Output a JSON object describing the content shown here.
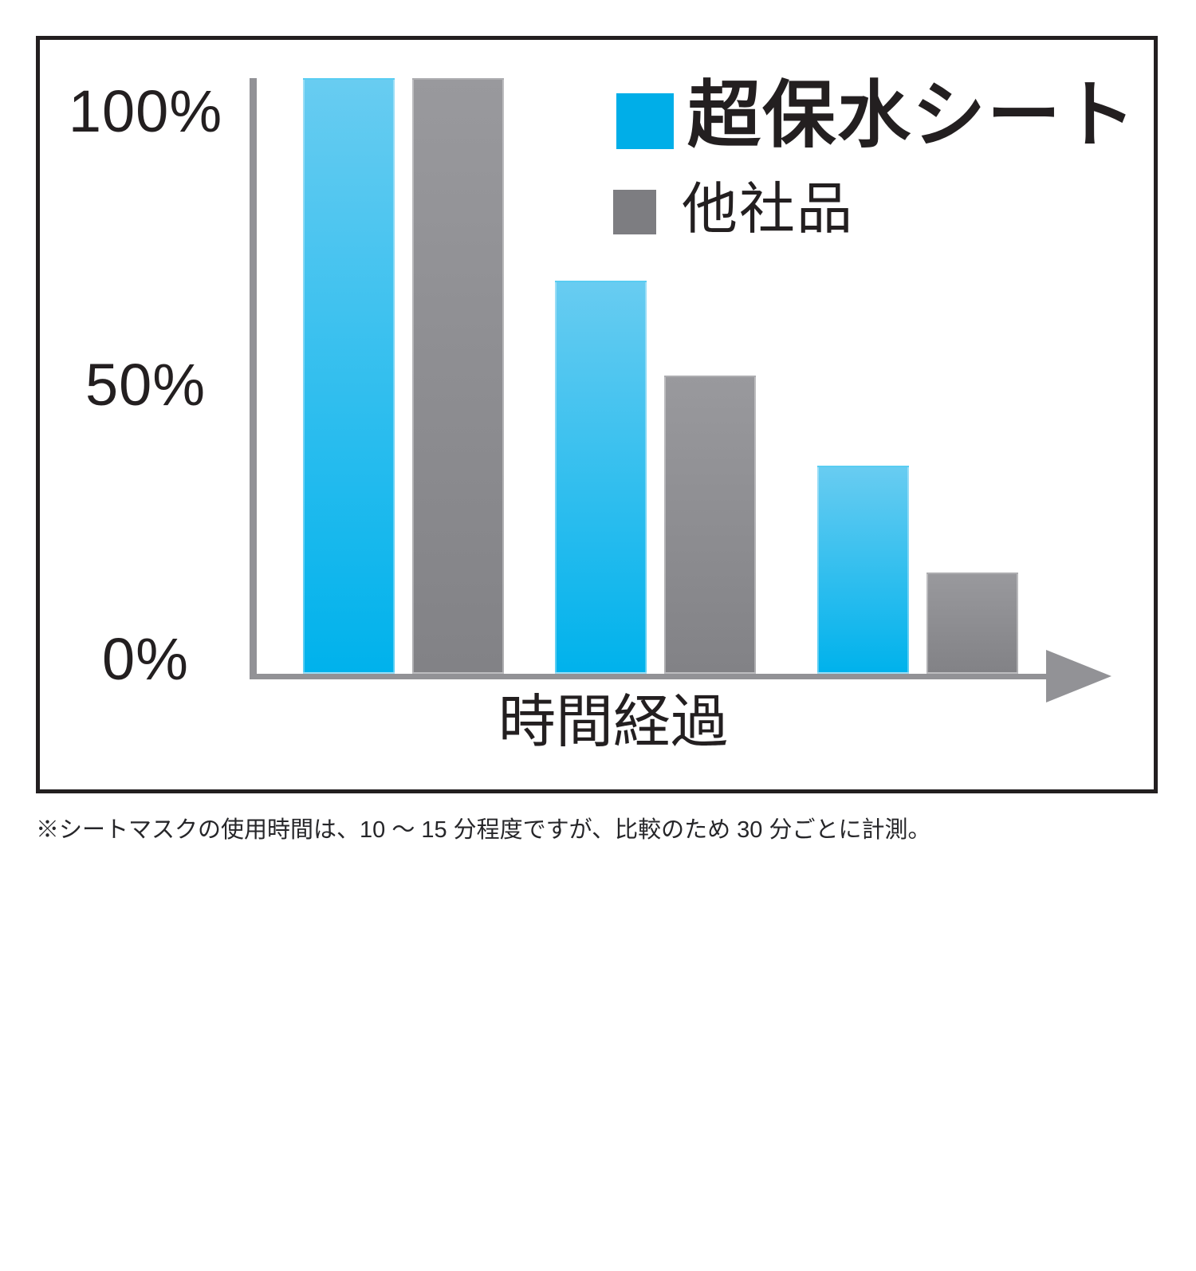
{
  "page": {
    "background_color": "#ffffff"
  },
  "chart_data": {
    "type": "bar",
    "title": "",
    "categories": [
      "",
      "",
      ""
    ],
    "series": [
      {
        "name": "超保水シート",
        "legend_color": "#00aee8",
        "gradient_top": "#68ccf1",
        "gradient_bottom": "#00b2ec",
        "values": [
          100,
          66,
          35
        ]
      },
      {
        "name": "他社品",
        "legend_color": "#7d7d81",
        "gradient_top": "#99999d",
        "gradient_bottom": "#828286",
        "values": [
          100,
          50,
          17
        ]
      }
    ],
    "xlabel": "時間経過",
    "ylabel": "",
    "y_ticks": [
      "100%",
      "50%",
      "0%"
    ],
    "ylim": [
      0,
      100
    ],
    "grid": false,
    "legend_position": "top-right",
    "axis_color": "#929296",
    "x_axis_style": "arrow-right"
  },
  "footnote": "※シートマスクの使用時間は、10 〜 15 分程度ですが、比較のため 30 分ごとに計測。"
}
